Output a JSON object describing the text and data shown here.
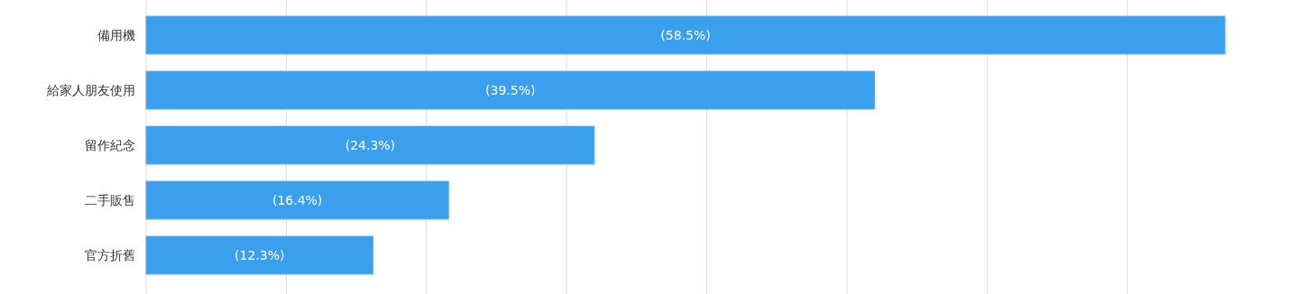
{
  "chart_data": {
    "type": "bar",
    "orientation": "horizontal",
    "categories": [
      "備用機",
      "給家人朋友使用",
      "留作紀念",
      "二手販售",
      "官方折舊"
    ],
    "values": [
      58.5,
      39.5,
      24.3,
      16.4,
      12.3
    ],
    "value_labels": [
      "(58.5%)",
      "(39.5%)",
      "(24.3%)",
      "(16.4%)",
      "(12.3%)"
    ],
    "color": "#3a9fed",
    "xticks": [
      {
        "value": 0,
        "label": null
      },
      {
        "value": 7.6,
        "label": null
      },
      {
        "value": 15.2,
        "label": null
      },
      {
        "value": 22.8,
        "label": null
      },
      {
        "value": 30.4,
        "label": null
      },
      {
        "value": 38,
        "label": null
      },
      {
        "value": 45.6,
        "label": null
      },
      {
        "value": 53.2,
        "label": null
      }
    ],
    "grid": "x",
    "tick_labels": "y"
  }
}
